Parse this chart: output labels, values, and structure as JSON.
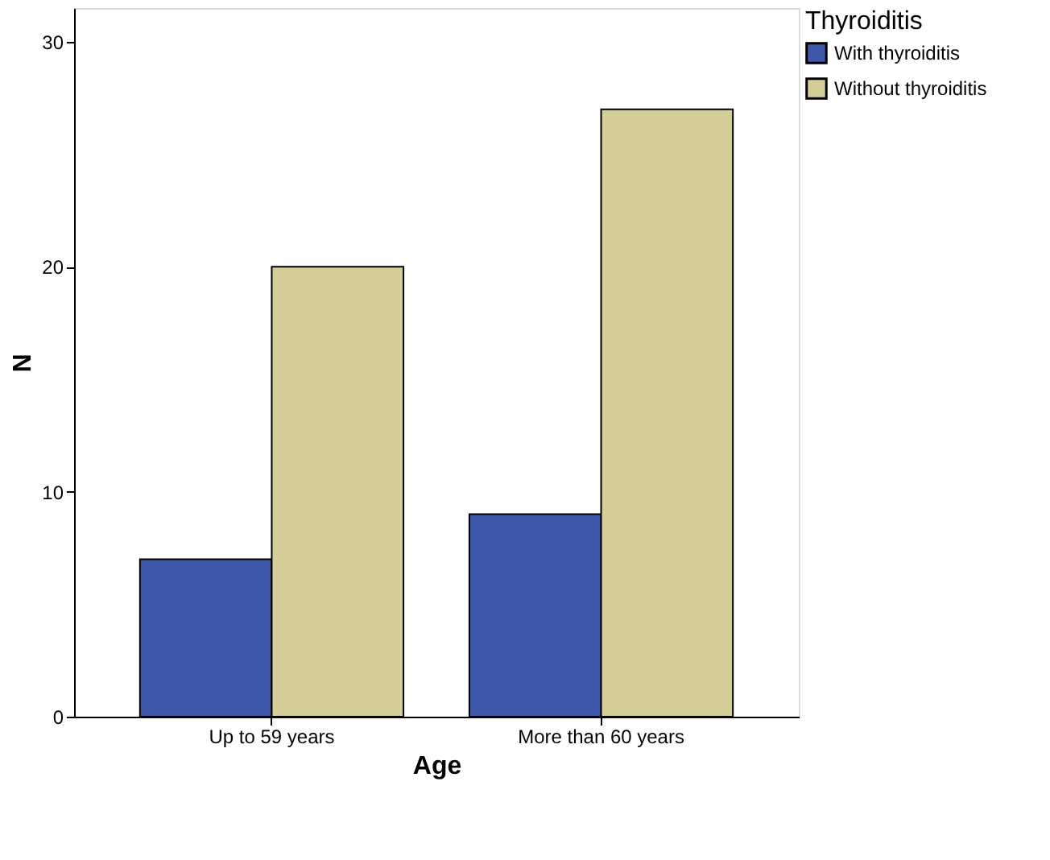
{
  "chart_data": {
    "type": "bar",
    "xlabel": "Age",
    "ylabel": "N",
    "legend_title": "Thyroiditis",
    "categories": [
      "Up to 59 years",
      "More than 60 years"
    ],
    "series": [
      {
        "name": "With thyroiditis",
        "color": "#3f57a9",
        "values": [
          7,
          9
        ]
      },
      {
        "name": "Without thyroiditis",
        "color": "#d4cf98",
        "values": [
          20,
          27
        ]
      }
    ],
    "ylim": [
      0,
      31.5
    ],
    "yticks": [
      0,
      10,
      20,
      30
    ],
    "grid": false,
    "legend": "top right"
  }
}
